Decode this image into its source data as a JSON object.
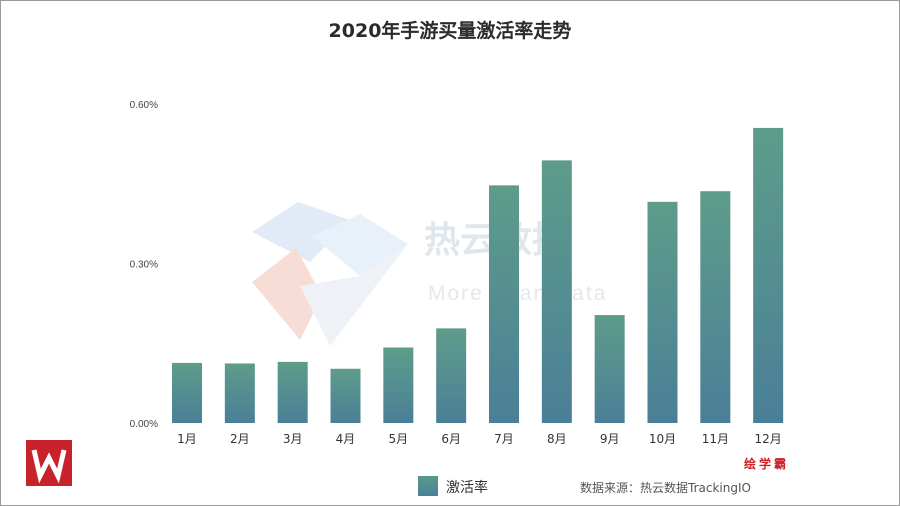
{
  "title": "2020年手游买量激活率走势",
  "chart_data": {
    "type": "bar",
    "categories": [
      "1月",
      "2月",
      "3月",
      "4月",
      "5月",
      "6月",
      "7月",
      "8月",
      "9月",
      "10月",
      "11月",
      "12月"
    ],
    "series": [
      {
        "name": "激活率",
        "values": [
          0.113,
          0.112,
          0.115,
          0.102,
          0.142,
          0.178,
          0.447,
          0.494,
          0.203,
          0.416,
          0.436,
          0.555
        ]
      }
    ],
    "ylim": [
      0,
      0.6
    ],
    "yticks": [
      "0.00%",
      "0.30%",
      "0.60%"
    ],
    "ytick_values": [
      0,
      0.3,
      0.6
    ],
    "grid": false,
    "legend_position": "bottom"
  },
  "watermark": {
    "text": "热云数据",
    "subtext": "More Than Data"
  },
  "legend": {
    "label": "激活率"
  },
  "source": "数据来源：热云数据TrackingIO",
  "brand": "绘学霸",
  "colors": {
    "bar_top": "#5e9c8a",
    "bar_bottom": "#4a7f97",
    "brand_red": "#c8222a"
  }
}
